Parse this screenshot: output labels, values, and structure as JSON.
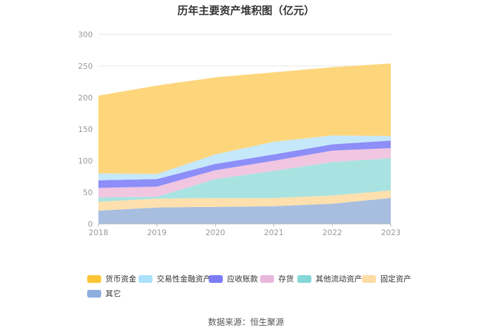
{
  "chart_data": {
    "type": "area",
    "title": "历年主要资产堆积图（亿元）",
    "xlabel": "",
    "ylabel": "",
    "x": [
      "2018",
      "2019",
      "2020",
      "2021",
      "2022",
      "2023"
    ],
    "ylim": [
      0,
      300
    ],
    "yticks": [
      "0",
      "50",
      "100",
      "150",
      "200",
      "250",
      "300"
    ],
    "grid": true,
    "legend_position": "bottom",
    "stacked": true,
    "series": [
      {
        "name": "其它",
        "color": "#a7bee0",
        "values": [
          21,
          26,
          27,
          28,
          32,
          41
        ]
      },
      {
        "name": "固定资产",
        "color": "#fde0ad",
        "values": [
          14,
          14,
          14,
          13,
          13,
          12
        ]
      },
      {
        "name": "其他流动资产",
        "color": "#a9e3e1",
        "values": [
          7,
          3,
          30,
          43,
          53,
          51
        ]
      },
      {
        "name": "存货",
        "color": "#f1c6e1",
        "values": [
          15,
          16,
          14,
          16,
          18,
          16
        ]
      },
      {
        "name": "应收账款",
        "color": "#8d8ef8",
        "values": [
          12,
          12,
          10,
          10,
          10,
          12
        ]
      },
      {
        "name": "交易性金融资产",
        "color": "#c5e8fb",
        "values": [
          11,
          8,
          15,
          20,
          14,
          7
        ]
      },
      {
        "name": "货币资金",
        "color": "#fdd67c",
        "values": [
          123,
          140,
          122,
          110,
          108,
          115
        ]
      }
    ]
  },
  "legend": [
    {
      "label": "货币资金",
      "color": "#fcc537"
    },
    {
      "label": "交易性金融资产",
      "color": "#abe1fb"
    },
    {
      "label": "应收账款",
      "color": "#7c7df5"
    },
    {
      "label": "存货",
      "color": "#eab8dc"
    },
    {
      "label": "其他流动资产",
      "color": "#86d8d8"
    },
    {
      "label": "固定资产",
      "color": "#fddda3"
    },
    {
      "label": "其它",
      "color": "#8eaede"
    }
  ],
  "source": "数据来源：恒生聚源"
}
